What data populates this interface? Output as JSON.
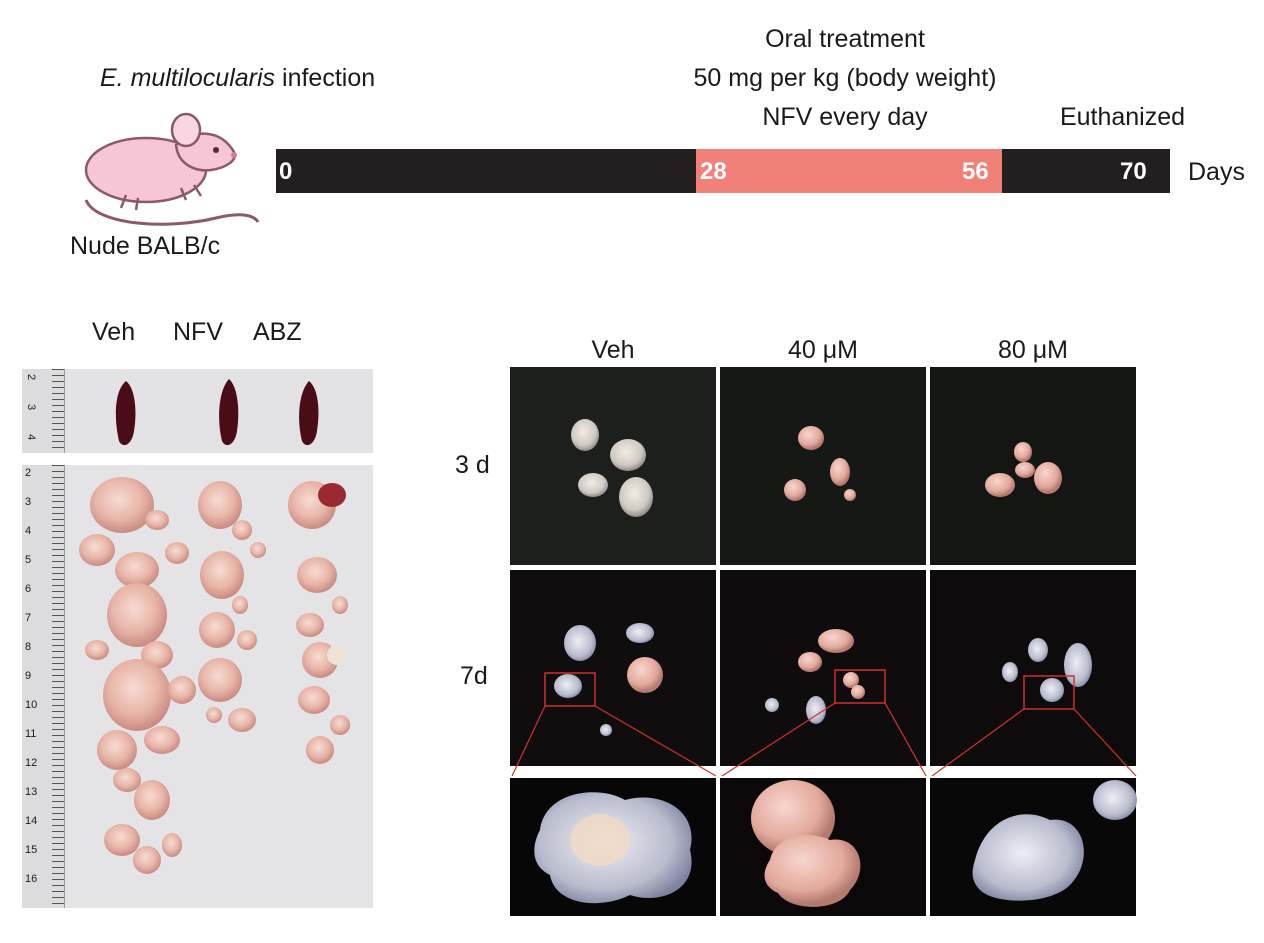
{
  "timeline": {
    "infection_species": "E. multilocularis",
    "infection_word": "infection",
    "mouse_label": "Nude BALB/c",
    "treatment_lines": [
      "Oral treatment",
      "50 mg per kg (body weight)",
      "NFV every day"
    ],
    "end_label": "Euthanized",
    "unit_label": "Days",
    "ticks": [
      "0",
      "28",
      "56",
      "70"
    ],
    "colors": {
      "baseline": "#231f20",
      "treatment": "#f08078"
    }
  },
  "left_panel": {
    "columns": [
      "Veh",
      "NFV",
      "ABZ"
    ],
    "ruler_top_numbers": [
      "2",
      "3",
      "4"
    ],
    "ruler_bottom_numbers": [
      "2",
      "3",
      "4",
      "5",
      "6",
      "7",
      "8",
      "9",
      "10",
      "11",
      "12",
      "13",
      "14",
      "15",
      "16"
    ]
  },
  "right_panel": {
    "columns": [
      "Veh",
      "40 μM",
      "80 μM"
    ],
    "rows": [
      "3 d",
      "7d"
    ]
  }
}
